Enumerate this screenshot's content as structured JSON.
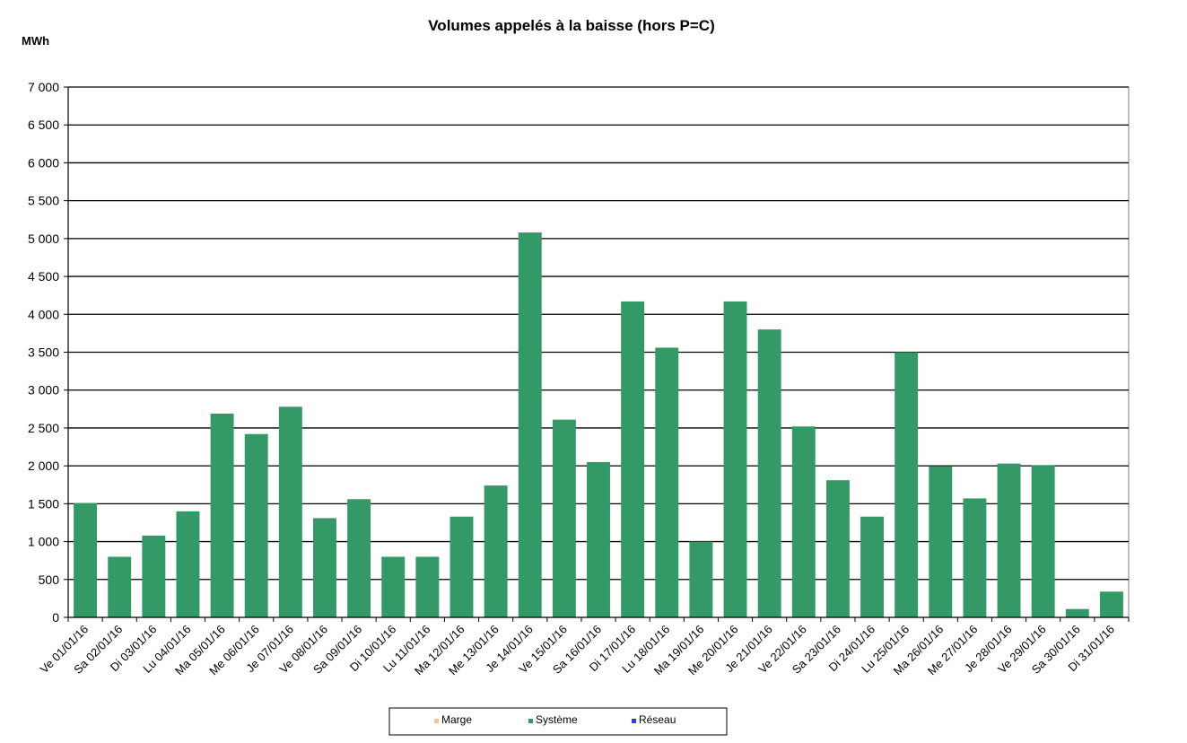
{
  "chart_data": {
    "type": "bar",
    "title": "Volumes appelés à la baisse (hors P=C)",
    "ylabel": "MWh",
    "xlabel": "",
    "ylim": [
      0,
      7000
    ],
    "ytick_step": 500,
    "ytick_labels": [
      "0",
      "500",
      "1 000",
      "1 500",
      "2 000",
      "2 500",
      "3 000",
      "3 500",
      "4 000",
      "4 500",
      "5 000",
      "5 500",
      "6 000",
      "6 500",
      "7 000"
    ],
    "grid": true,
    "legend_position": "bottom",
    "categories": [
      "Ve 01/01/16",
      "Sa 02/01/16",
      "Di 03/01/16",
      "Lu 04/01/16",
      "Ma 05/01/16",
      "Me 06/01/16",
      "Je 07/01/16",
      "Ve 08/01/16",
      "Sa 09/01/16",
      "Di 10/01/16",
      "Lu 11/01/16",
      "Ma 12/01/16",
      "Me 13/01/16",
      "Je 14/01/16",
      "Ve 15/01/16",
      "Sa 16/01/16",
      "Di 17/01/16",
      "Lu 18/01/16",
      "Ma 19/01/16",
      "Me 20/01/16",
      "Je 21/01/16",
      "Ve 22/01/16",
      "Sa 23/01/16",
      "Di 24/01/16",
      "Lu 25/01/16",
      "Ma 26/01/16",
      "Me 27/01/16",
      "Je 28/01/16",
      "Ve 29/01/16",
      "Sa 30/01/16",
      "Di 31/01/16"
    ],
    "series": [
      {
        "name": "Marge",
        "color": "#fac090",
        "values": [
          0,
          0,
          0,
          0,
          0,
          0,
          0,
          0,
          0,
          0,
          0,
          0,
          0,
          0,
          0,
          0,
          0,
          0,
          0,
          0,
          0,
          0,
          0,
          0,
          0,
          0,
          0,
          0,
          0,
          0,
          0
        ]
      },
      {
        "name": "Système",
        "color": "#339966",
        "values": [
          1510,
          800,
          1080,
          1400,
          2690,
          2420,
          2780,
          1310,
          1560,
          800,
          800,
          1330,
          1740,
          5080,
          2610,
          2050,
          4170,
          3560,
          1000,
          4170,
          3800,
          2520,
          1810,
          1330,
          3500,
          1990,
          1570,
          2030,
          2010,
          110,
          340
        ]
      },
      {
        "name": "Réseau",
        "color": "#3333ff",
        "values": [
          0,
          0,
          0,
          0,
          0,
          0,
          0,
          0,
          0,
          0,
          0,
          0,
          0,
          0,
          0,
          0,
          0,
          0,
          0,
          0,
          0,
          0,
          0,
          0,
          0,
          0,
          0,
          0,
          0,
          0,
          0
        ]
      }
    ]
  }
}
